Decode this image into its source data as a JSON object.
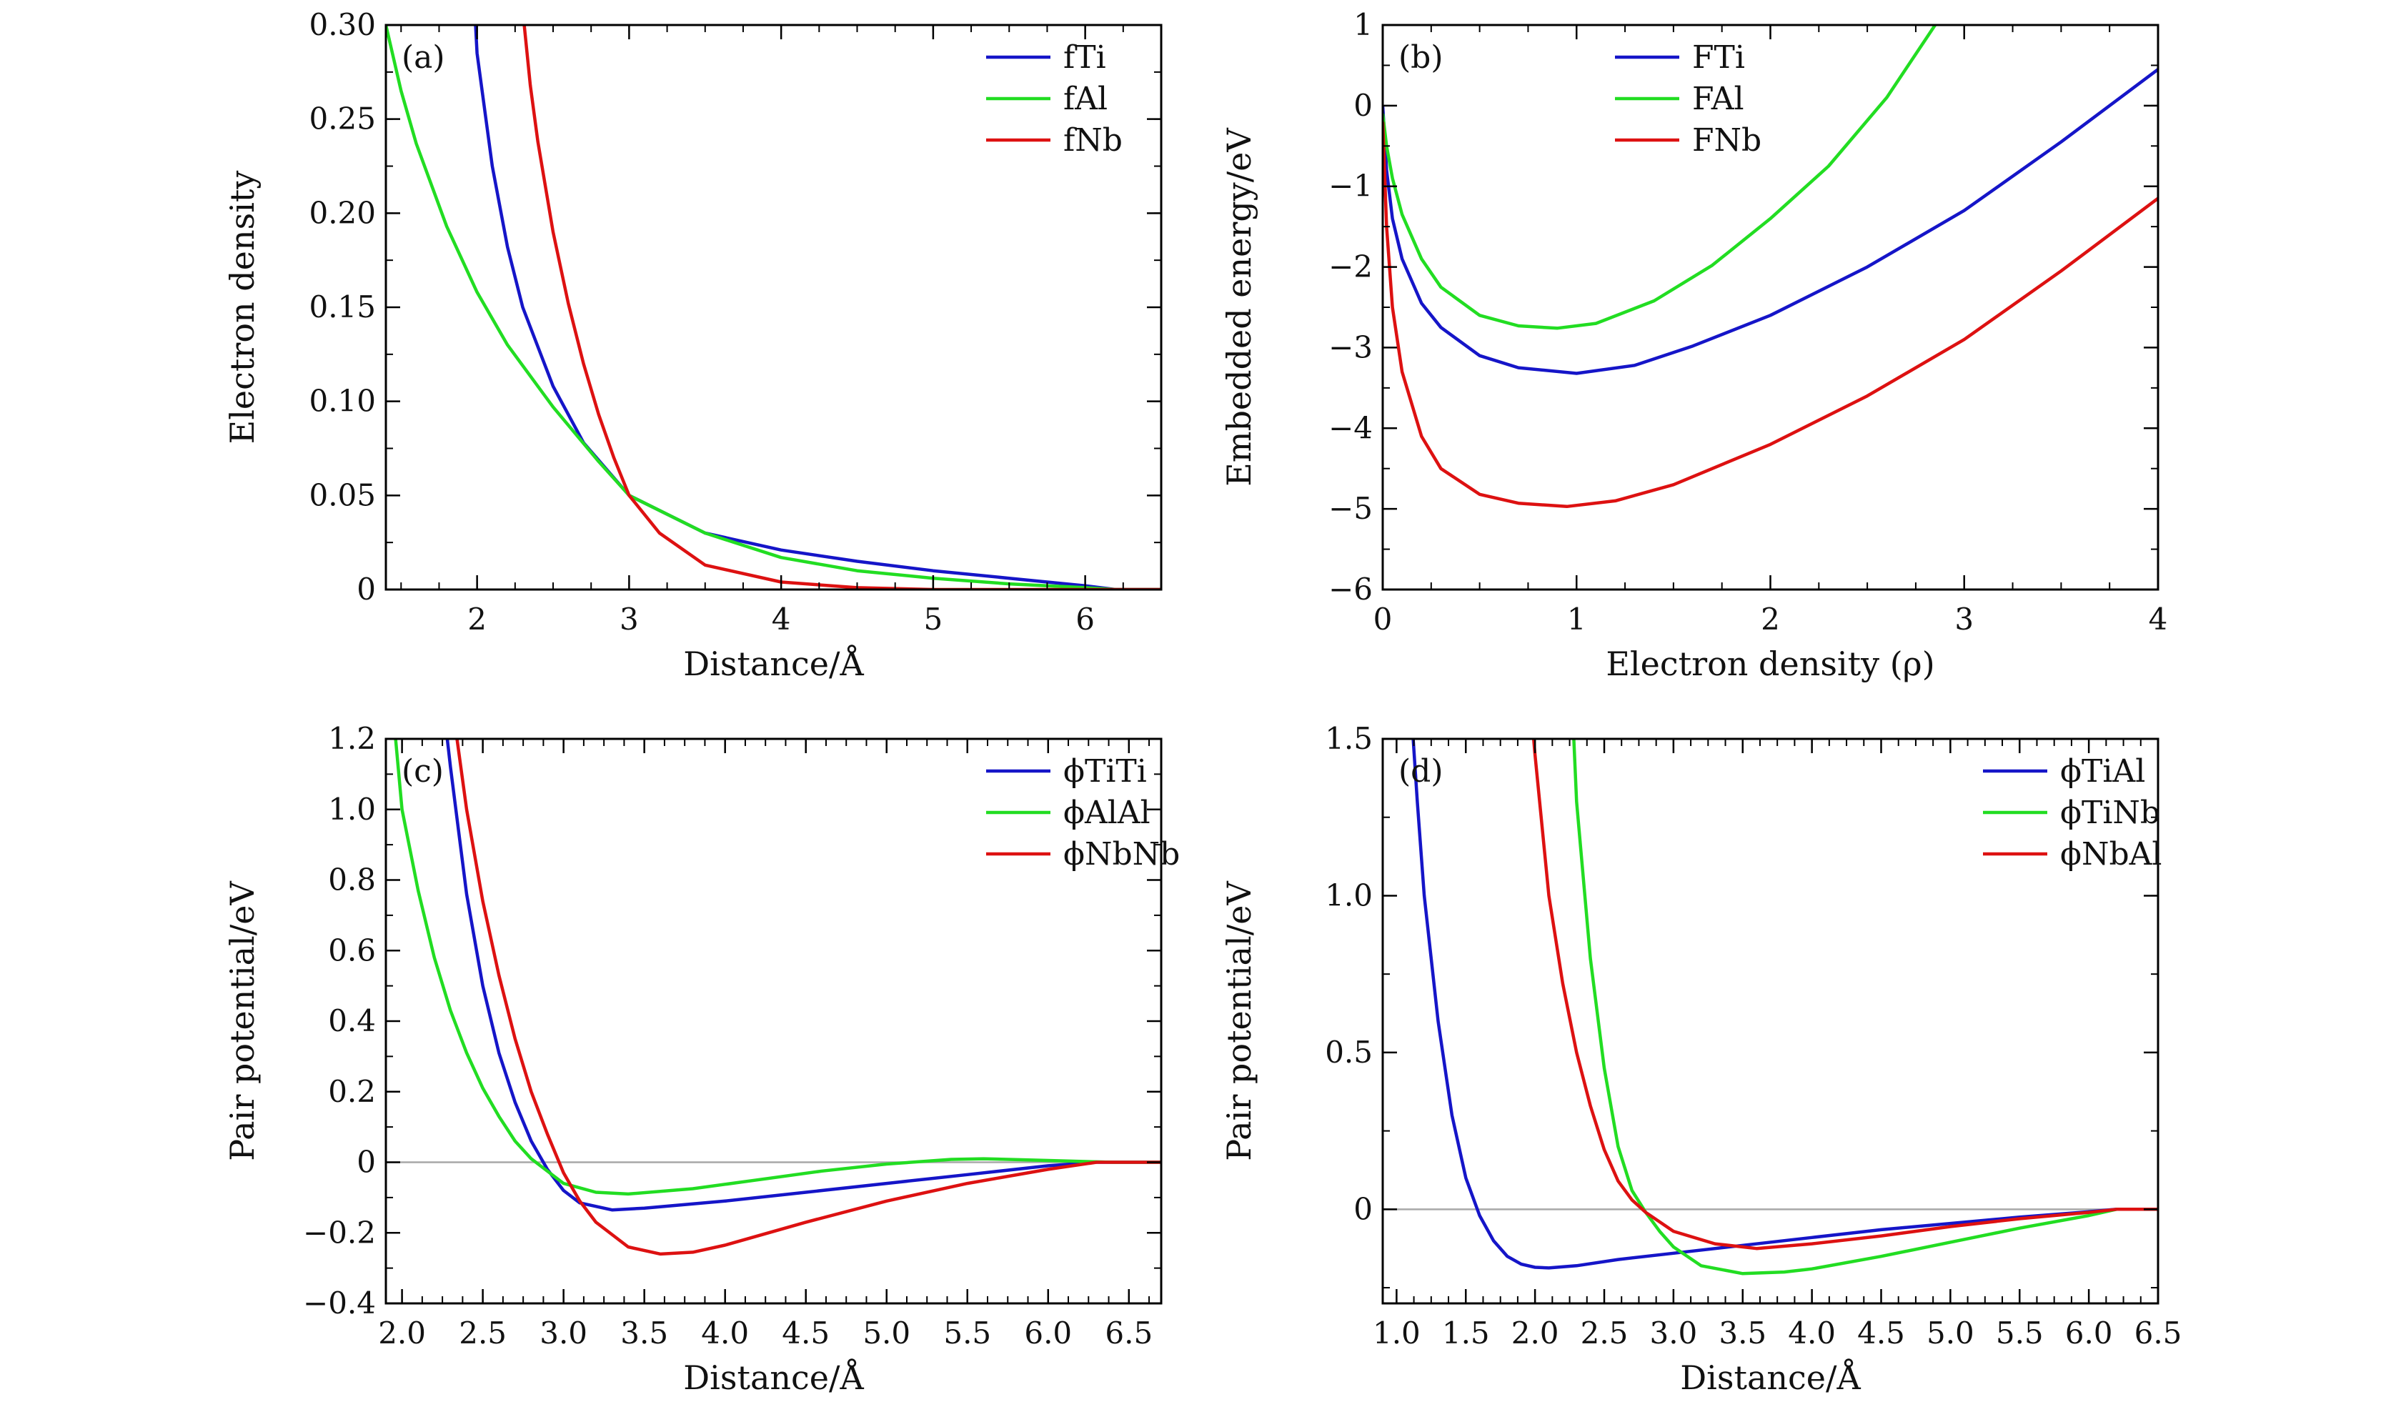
{
  "chart_data": [
    {
      "type": "line",
      "panel_label": "(a)",
      "xlabel": "Distance/Å",
      "ylabel": "Electron density",
      "xlim": [
        1.4,
        6.5
      ],
      "ylim": [
        0,
        0.3
      ],
      "xticks": [
        2,
        3,
        4,
        5,
        6
      ],
      "xtick_labels": [
        "2",
        "3",
        "4",
        "5",
        "6"
      ],
      "yticks": [
        0,
        0.05,
        0.1,
        0.15,
        0.2,
        0.25,
        0.3
      ],
      "ytick_labels": [
        "0",
        "0.05",
        "0.10",
        "0.15",
        "0.20",
        "0.25",
        "0.30"
      ],
      "legend_position": "top-right",
      "zero_line": false,
      "series": [
        {
          "name": "fTi",
          "color": "#1515c8",
          "x": [
            1.99,
            2.0,
            2.1,
            2.2,
            2.3,
            2.5,
            2.7,
            3.0,
            3.5,
            4.0,
            4.5,
            5.0,
            5.5,
            6.0,
            6.2,
            6.5
          ],
          "y": [
            0.3,
            0.285,
            0.225,
            0.182,
            0.15,
            0.108,
            0.078,
            0.05,
            0.03,
            0.021,
            0.015,
            0.01,
            0.006,
            0.002,
            0.0,
            0.0
          ]
        },
        {
          "name": "fAl",
          "color": "#22dd22",
          "x": [
            1.4,
            1.5,
            1.6,
            1.8,
            2.0,
            2.2,
            2.5,
            2.8,
            3.0,
            3.5,
            4.0,
            4.5,
            5.0,
            5.5,
            6.0,
            6.2,
            6.5
          ],
          "y": [
            0.3,
            0.265,
            0.237,
            0.193,
            0.158,
            0.13,
            0.097,
            0.068,
            0.05,
            0.03,
            0.017,
            0.01,
            0.006,
            0.003,
            0.001,
            0.0,
            0.0
          ]
        },
        {
          "name": "fNb",
          "color": "#dd1111",
          "x": [
            2.31,
            2.35,
            2.4,
            2.5,
            2.6,
            2.7,
            2.8,
            2.9,
            3.0,
            3.2,
            3.5,
            4.0,
            4.5,
            5.0,
            6.0,
            6.5
          ],
          "y": [
            0.3,
            0.268,
            0.238,
            0.19,
            0.152,
            0.12,
            0.093,
            0.07,
            0.05,
            0.03,
            0.013,
            0.004,
            0.001,
            0.0,
            0.0,
            0.0
          ]
        }
      ]
    },
    {
      "type": "line",
      "panel_label": "(b)",
      "xlabel": "Electron density (ρ)",
      "ylabel": "Embedded energy/eV",
      "xlim": [
        0,
        4
      ],
      "ylim": [
        -6,
        1
      ],
      "xticks": [
        0,
        1,
        2,
        3,
        4
      ],
      "xtick_labels": [
        "0",
        "1",
        "2",
        "3",
        "4"
      ],
      "yticks": [
        -6,
        -5,
        -4,
        -3,
        -2,
        -1,
        0,
        1
      ],
      "ytick_labels": [
        "−6",
        "−5",
        "−4",
        "−3",
        "−2",
        "−1",
        "0",
        "1"
      ],
      "legend_position": "top-center",
      "zero_line": false,
      "series": [
        {
          "name": "FTi",
          "color": "#1515c8",
          "x": [
            0.0,
            0.02,
            0.05,
            0.1,
            0.2,
            0.3,
            0.5,
            0.7,
            1.0,
            1.3,
            1.6,
            2.0,
            2.5,
            3.0,
            3.5,
            4.0
          ],
          "y": [
            0.0,
            -0.8,
            -1.4,
            -1.9,
            -2.45,
            -2.75,
            -3.1,
            -3.25,
            -3.32,
            -3.22,
            -2.98,
            -2.6,
            -2.0,
            -1.3,
            -0.45,
            0.45
          ]
        },
        {
          "name": "FAl",
          "color": "#22dd22",
          "x": [
            0.0,
            0.02,
            0.05,
            0.1,
            0.2,
            0.3,
            0.5,
            0.7,
            0.9,
            1.1,
            1.4,
            1.7,
            2.0,
            2.3,
            2.6,
            2.85
          ],
          "y": [
            -0.1,
            -0.5,
            -0.9,
            -1.35,
            -1.9,
            -2.25,
            -2.6,
            -2.73,
            -2.76,
            -2.7,
            -2.42,
            -1.98,
            -1.4,
            -0.75,
            0.1,
            1.0
          ]
        },
        {
          "name": "FNb",
          "color": "#dd1111",
          "x": [
            0.0,
            0.02,
            0.05,
            0.1,
            0.2,
            0.3,
            0.5,
            0.7,
            0.95,
            1.2,
            1.5,
            2.0,
            2.5,
            3.0,
            3.5,
            4.0
          ],
          "y": [
            -0.2,
            -1.5,
            -2.5,
            -3.3,
            -4.1,
            -4.5,
            -4.82,
            -4.93,
            -4.97,
            -4.9,
            -4.7,
            -4.2,
            -3.6,
            -2.9,
            -2.05,
            -1.15
          ]
        }
      ]
    },
    {
      "type": "line",
      "panel_label": "(c)",
      "xlabel": "Distance/Å",
      "ylabel": "Pair potential/eV",
      "xlim": [
        1.9,
        6.7
      ],
      "ylim": [
        -0.4,
        1.2
      ],
      "xticks": [
        2.0,
        2.5,
        3.0,
        3.5,
        4.0,
        4.5,
        5.0,
        5.5,
        6.0,
        6.5
      ],
      "xtick_labels": [
        "2.0",
        "2.5",
        "3.0",
        "3.5",
        "4.0",
        "4.5",
        "5.0",
        "5.5",
        "6.0",
        "6.5"
      ],
      "yticks": [
        -0.4,
        -0.2,
        0,
        0.2,
        0.4,
        0.6,
        0.8,
        1.0,
        1.2
      ],
      "ytick_labels": [
        "−0.4",
        "−0.2",
        "0",
        "0.2",
        "0.4",
        "0.6",
        "0.8",
        "1.0",
        "1.2"
      ],
      "legend_position": "top-right",
      "zero_line": true,
      "series": [
        {
          "name": "ϕTiTi",
          "color": "#1515c8",
          "x": [
            2.28,
            2.3,
            2.4,
            2.5,
            2.6,
            2.7,
            2.8,
            2.9,
            3.0,
            3.1,
            3.3,
            3.5,
            4.0,
            4.5,
            5.0,
            5.5,
            6.0,
            6.3,
            6.7
          ],
          "y": [
            1.2,
            1.12,
            0.76,
            0.5,
            0.31,
            0.17,
            0.06,
            -0.02,
            -0.08,
            -0.115,
            -0.135,
            -0.13,
            -0.11,
            -0.085,
            -0.06,
            -0.035,
            -0.01,
            0.0,
            0.0
          ]
        },
        {
          "name": "ϕAlAl",
          "color": "#22dd22",
          "x": [
            1.96,
            2.0,
            2.1,
            2.2,
            2.3,
            2.4,
            2.5,
            2.6,
            2.7,
            2.8,
            3.0,
            3.2,
            3.4,
            3.8,
            4.2,
            4.6,
            5.0,
            5.4,
            5.6,
            6.0,
            6.4,
            6.7
          ],
          "y": [
            1.2,
            1.0,
            0.77,
            0.58,
            0.43,
            0.31,
            0.21,
            0.13,
            0.06,
            0.01,
            -0.06,
            -0.085,
            -0.09,
            -0.075,
            -0.05,
            -0.025,
            -0.005,
            0.008,
            0.01,
            0.005,
            0.0,
            0.0
          ]
        },
        {
          "name": "ϕNbNb",
          "color": "#dd1111",
          "x": [
            2.34,
            2.4,
            2.5,
            2.6,
            2.7,
            2.8,
            2.9,
            3.0,
            3.1,
            3.2,
            3.4,
            3.6,
            3.8,
            4.0,
            4.5,
            5.0,
            5.5,
            6.0,
            6.3,
            6.7
          ],
          "y": [
            1.2,
            1.0,
            0.74,
            0.53,
            0.35,
            0.2,
            0.08,
            -0.03,
            -0.11,
            -0.17,
            -0.24,
            -0.26,
            -0.255,
            -0.235,
            -0.17,
            -0.11,
            -0.06,
            -0.02,
            0.0,
            0.0
          ]
        }
      ]
    },
    {
      "type": "line",
      "panel_label": "(d)",
      "xlabel": "Distance/Å",
      "ylabel": "Pair potential/eV",
      "xlim": [
        0.9,
        6.5
      ],
      "ylim": [
        -0.3,
        1.5
      ],
      "xticks": [
        1.0,
        1.5,
        2.0,
        2.5,
        3.0,
        3.5,
        4.0,
        4.5,
        5.0,
        5.5,
        6.0,
        6.5
      ],
      "xtick_labels": [
        "1.0",
        "1.5",
        "2.0",
        "2.5",
        "3.0",
        "3.5",
        "4.0",
        "4.5",
        "5.0",
        "5.5",
        "6.0",
        "6.5"
      ],
      "yticks": [
        0,
        0.5,
        1.0,
        1.5
      ],
      "ytick_labels": [
        "0",
        "0.5",
        "1.0",
        "1.5"
      ],
      "legend_position": "top-right",
      "zero_line": true,
      "series": [
        {
          "name": "ϕTiAl",
          "color": "#1515c8",
          "x": [
            1.12,
            1.15,
            1.2,
            1.3,
            1.4,
            1.5,
            1.6,
            1.7,
            1.8,
            1.9,
            2.0,
            2.1,
            2.3,
            2.6,
            3.0,
            3.5,
            4.0,
            4.5,
            5.0,
            5.5,
            6.0,
            6.2,
            6.5
          ],
          "y": [
            1.5,
            1.3,
            1.0,
            0.6,
            0.3,
            0.1,
            -0.02,
            -0.1,
            -0.15,
            -0.175,
            -0.185,
            -0.187,
            -0.18,
            -0.16,
            -0.14,
            -0.115,
            -0.09,
            -0.065,
            -0.045,
            -0.025,
            -0.008,
            0.0,
            0.0
          ]
        },
        {
          "name": "ϕTiNb",
          "color": "#22dd22",
          "x": [
            2.28,
            2.3,
            2.4,
            2.5,
            2.6,
            2.7,
            2.8,
            2.9,
            3.0,
            3.2,
            3.5,
            3.8,
            4.0,
            4.5,
            5.0,
            5.5,
            6.0,
            6.2,
            6.5
          ],
          "y": [
            1.5,
            1.3,
            0.8,
            0.45,
            0.2,
            0.06,
            -0.01,
            -0.07,
            -0.12,
            -0.18,
            -0.205,
            -0.2,
            -0.19,
            -0.15,
            -0.105,
            -0.06,
            -0.02,
            0.0,
            0.0
          ]
        },
        {
          "name": "ϕNbAl",
          "color": "#dd1111",
          "x": [
            1.99,
            2.0,
            2.1,
            2.2,
            2.3,
            2.4,
            2.5,
            2.6,
            2.7,
            2.8,
            3.0,
            3.3,
            3.6,
            4.0,
            4.5,
            5.0,
            5.5,
            6.0,
            6.2,
            6.5
          ],
          "y": [
            1.5,
            1.45,
            1.0,
            0.72,
            0.5,
            0.33,
            0.19,
            0.09,
            0.03,
            -0.01,
            -0.07,
            -0.11,
            -0.125,
            -0.11,
            -0.085,
            -0.055,
            -0.03,
            -0.01,
            0.0,
            0.0
          ]
        }
      ]
    }
  ]
}
